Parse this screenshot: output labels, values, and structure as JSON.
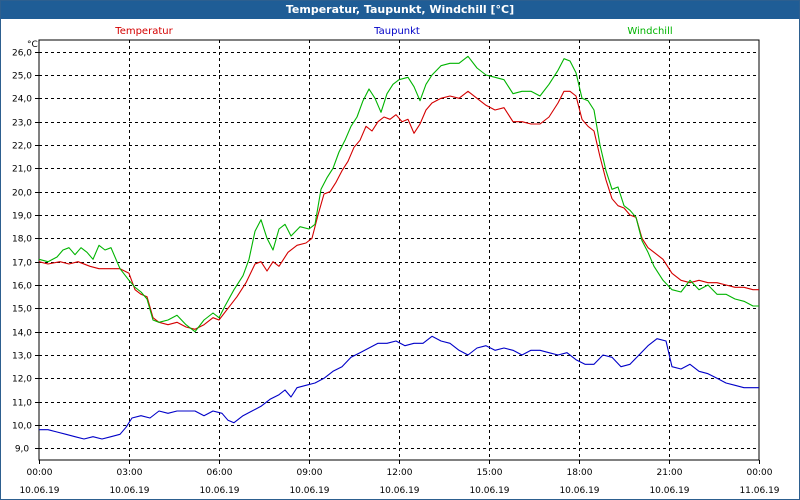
{
  "window": {
    "title": "Temperatur, Taupunkt, Windchill [°C]"
  },
  "chart_data": {
    "type": "line",
    "title": "Temperatur, Taupunkt, Windchill [°C]",
    "yunit": "°C",
    "ylim": [
      8.5,
      26.5
    ],
    "yticks": [
      "26,0",
      "25,0",
      "24,0",
      "23,0",
      "22,0",
      "21,0",
      "20,0",
      "19,0",
      "18,0",
      "17,0",
      "16,0",
      "15,0",
      "14,0",
      "13,0",
      "12,0",
      "11,0",
      "10,0",
      "9,0"
    ],
    "ytick_values": [
      26,
      25,
      24,
      23,
      22,
      21,
      20,
      19,
      18,
      17,
      16,
      15,
      14,
      13,
      12,
      11,
      10,
      9
    ],
    "xlim": [
      0,
      24
    ],
    "xticks": [
      {
        "time": "00:00",
        "date": "10.06.19"
      },
      {
        "time": "03:00",
        "date": "10.06.19"
      },
      {
        "time": "06:00",
        "date": "10.06.19"
      },
      {
        "time": "09:00",
        "date": "10.06.19"
      },
      {
        "time": "12:00",
        "date": "10.06.19"
      },
      {
        "time": "15:00",
        "date": "10.06.19"
      },
      {
        "time": "18:00",
        "date": "10.06.19"
      },
      {
        "time": "21:00",
        "date": "10.06.19"
      },
      {
        "time": "00:00",
        "date": "11.06.19"
      }
    ],
    "xtick_values": [
      0,
      3,
      6,
      9,
      12,
      15,
      18,
      21,
      24
    ],
    "grid": true,
    "series": [
      {
        "name": "Temperatur",
        "color": "#d40000",
        "points": [
          [
            0,
            17.0
          ],
          [
            0.3,
            16.9
          ],
          [
            0.7,
            17.0
          ],
          [
            1.0,
            16.9
          ],
          [
            1.3,
            17.0
          ],
          [
            1.7,
            16.8
          ],
          [
            2.0,
            16.7
          ],
          [
            2.3,
            16.7
          ],
          [
            2.7,
            16.7
          ],
          [
            3.0,
            16.5
          ],
          [
            3.2,
            15.8
          ],
          [
            3.4,
            15.6
          ],
          [
            3.6,
            15.5
          ],
          [
            3.8,
            14.6
          ],
          [
            4.0,
            14.4
          ],
          [
            4.3,
            14.3
          ],
          [
            4.6,
            14.4
          ],
          [
            4.9,
            14.2
          ],
          [
            5.2,
            14.1
          ],
          [
            5.5,
            14.3
          ],
          [
            5.8,
            14.6
          ],
          [
            6.0,
            14.5
          ],
          [
            6.3,
            15.0
          ],
          [
            6.6,
            15.5
          ],
          [
            6.9,
            16.1
          ],
          [
            7.2,
            16.9
          ],
          [
            7.4,
            17.0
          ],
          [
            7.6,
            16.6
          ],
          [
            7.8,
            17.0
          ],
          [
            8.0,
            16.8
          ],
          [
            8.3,
            17.4
          ],
          [
            8.6,
            17.7
          ],
          [
            8.9,
            17.8
          ],
          [
            9.1,
            18.0
          ],
          [
            9.3,
            19.0
          ],
          [
            9.5,
            19.9
          ],
          [
            9.7,
            20.0
          ],
          [
            9.9,
            20.4
          ],
          [
            10.1,
            20.9
          ],
          [
            10.3,
            21.3
          ],
          [
            10.5,
            21.9
          ],
          [
            10.7,
            22.2
          ],
          [
            10.9,
            22.8
          ],
          [
            11.1,
            22.6
          ],
          [
            11.3,
            23.0
          ],
          [
            11.5,
            23.2
          ],
          [
            11.7,
            23.1
          ],
          [
            11.9,
            23.3
          ],
          [
            12.1,
            23.0
          ],
          [
            12.3,
            23.1
          ],
          [
            12.5,
            22.5
          ],
          [
            12.7,
            22.9
          ],
          [
            12.9,
            23.5
          ],
          [
            13.1,
            23.8
          ],
          [
            13.4,
            24.0
          ],
          [
            13.7,
            24.1
          ],
          [
            14.0,
            24.0
          ],
          [
            14.3,
            24.3
          ],
          [
            14.6,
            24.0
          ],
          [
            14.9,
            23.7
          ],
          [
            15.2,
            23.5
          ],
          [
            15.5,
            23.6
          ],
          [
            15.8,
            23.0
          ],
          [
            16.1,
            23.0
          ],
          [
            16.4,
            22.9
          ],
          [
            16.7,
            22.9
          ],
          [
            17.0,
            23.2
          ],
          [
            17.3,
            23.8
          ],
          [
            17.5,
            24.3
          ],
          [
            17.7,
            24.3
          ],
          [
            17.9,
            24.1
          ],
          [
            18.1,
            23.1
          ],
          [
            18.3,
            22.8
          ],
          [
            18.5,
            22.6
          ],
          [
            18.7,
            21.5
          ],
          [
            18.9,
            20.5
          ],
          [
            19.1,
            19.7
          ],
          [
            19.3,
            19.4
          ],
          [
            19.5,
            19.3
          ],
          [
            19.7,
            19.0
          ],
          [
            19.9,
            18.9
          ],
          [
            20.1,
            18.0
          ],
          [
            20.3,
            17.6
          ],
          [
            20.5,
            17.4
          ],
          [
            20.8,
            17.1
          ],
          [
            21.1,
            16.5
          ],
          [
            21.4,
            16.2
          ],
          [
            21.7,
            16.1
          ],
          [
            22.0,
            16.2
          ],
          [
            22.3,
            16.1
          ],
          [
            22.6,
            16.1
          ],
          [
            22.9,
            16.0
          ],
          [
            23.2,
            15.9
          ],
          [
            23.5,
            15.9
          ],
          [
            23.8,
            15.8
          ],
          [
            24.0,
            15.8
          ]
        ]
      },
      {
        "name": "Taupunkt",
        "color": "#0000c8",
        "points": [
          [
            0,
            9.8
          ],
          [
            0.3,
            9.8
          ],
          [
            0.6,
            9.7
          ],
          [
            0.9,
            9.6
          ],
          [
            1.2,
            9.5
          ],
          [
            1.5,
            9.4
          ],
          [
            1.8,
            9.5
          ],
          [
            2.1,
            9.4
          ],
          [
            2.4,
            9.5
          ],
          [
            2.7,
            9.6
          ],
          [
            2.9,
            9.9
          ],
          [
            3.1,
            10.3
          ],
          [
            3.4,
            10.4
          ],
          [
            3.7,
            10.3
          ],
          [
            4.0,
            10.6
          ],
          [
            4.3,
            10.5
          ],
          [
            4.6,
            10.6
          ],
          [
            4.9,
            10.6
          ],
          [
            5.2,
            10.6
          ],
          [
            5.5,
            10.4
          ],
          [
            5.8,
            10.6
          ],
          [
            6.1,
            10.5
          ],
          [
            6.3,
            10.2
          ],
          [
            6.5,
            10.1
          ],
          [
            6.8,
            10.4
          ],
          [
            7.1,
            10.6
          ],
          [
            7.4,
            10.8
          ],
          [
            7.7,
            11.1
          ],
          [
            8.0,
            11.3
          ],
          [
            8.2,
            11.5
          ],
          [
            8.4,
            11.2
          ],
          [
            8.6,
            11.6
          ],
          [
            8.9,
            11.7
          ],
          [
            9.2,
            11.8
          ],
          [
            9.5,
            12.0
          ],
          [
            9.8,
            12.3
          ],
          [
            10.1,
            12.5
          ],
          [
            10.4,
            12.9
          ],
          [
            10.7,
            13.1
          ],
          [
            11.0,
            13.3
          ],
          [
            11.3,
            13.5
          ],
          [
            11.6,
            13.5
          ],
          [
            11.9,
            13.6
          ],
          [
            12.2,
            13.4
          ],
          [
            12.5,
            13.5
          ],
          [
            12.8,
            13.5
          ],
          [
            13.1,
            13.8
          ],
          [
            13.4,
            13.6
          ],
          [
            13.7,
            13.5
          ],
          [
            14.0,
            13.2
          ],
          [
            14.3,
            13.0
          ],
          [
            14.6,
            13.3
          ],
          [
            14.9,
            13.4
          ],
          [
            15.2,
            13.2
          ],
          [
            15.5,
            13.3
          ],
          [
            15.8,
            13.2
          ],
          [
            16.1,
            13.0
          ],
          [
            16.4,
            13.2
          ],
          [
            16.7,
            13.2
          ],
          [
            17.0,
            13.1
          ],
          [
            17.3,
            13.0
          ],
          [
            17.6,
            13.1
          ],
          [
            17.9,
            12.8
          ],
          [
            18.2,
            12.6
          ],
          [
            18.5,
            12.6
          ],
          [
            18.8,
            13.0
          ],
          [
            19.1,
            12.9
          ],
          [
            19.4,
            12.5
          ],
          [
            19.7,
            12.6
          ],
          [
            20.0,
            13.0
          ],
          [
            20.3,
            13.4
          ],
          [
            20.6,
            13.7
          ],
          [
            20.9,
            13.6
          ],
          [
            21.1,
            12.5
          ],
          [
            21.4,
            12.4
          ],
          [
            21.7,
            12.6
          ],
          [
            22.0,
            12.3
          ],
          [
            22.3,
            12.2
          ],
          [
            22.6,
            12.0
          ],
          [
            22.9,
            11.8
          ],
          [
            23.2,
            11.7
          ],
          [
            23.5,
            11.6
          ],
          [
            23.8,
            11.6
          ],
          [
            24.0,
            11.6
          ]
        ]
      },
      {
        "name": "Windchill",
        "color": "#00b400",
        "points": [
          [
            0,
            17.1
          ],
          [
            0.3,
            17.0
          ],
          [
            0.6,
            17.2
          ],
          [
            0.8,
            17.5
          ],
          [
            1.0,
            17.6
          ],
          [
            1.2,
            17.3
          ],
          [
            1.4,
            17.6
          ],
          [
            1.6,
            17.4
          ],
          [
            1.8,
            17.1
          ],
          [
            2.0,
            17.7
          ],
          [
            2.2,
            17.5
          ],
          [
            2.4,
            17.6
          ],
          [
            2.7,
            16.7
          ],
          [
            3.0,
            16.2
          ],
          [
            3.2,
            15.9
          ],
          [
            3.4,
            15.7
          ],
          [
            3.6,
            15.4
          ],
          [
            3.8,
            14.5
          ],
          [
            4.0,
            14.4
          ],
          [
            4.3,
            14.5
          ],
          [
            4.6,
            14.7
          ],
          [
            4.9,
            14.3
          ],
          [
            5.2,
            14.0
          ],
          [
            5.5,
            14.5
          ],
          [
            5.8,
            14.8
          ],
          [
            6.0,
            14.6
          ],
          [
            6.2,
            15.1
          ],
          [
            6.5,
            15.8
          ],
          [
            6.8,
            16.4
          ],
          [
            7.0,
            17.1
          ],
          [
            7.2,
            18.3
          ],
          [
            7.4,
            18.8
          ],
          [
            7.6,
            18.0
          ],
          [
            7.8,
            17.5
          ],
          [
            8.0,
            18.4
          ],
          [
            8.2,
            18.6
          ],
          [
            8.4,
            18.1
          ],
          [
            8.7,
            18.5
          ],
          [
            9.0,
            18.4
          ],
          [
            9.2,
            18.6
          ],
          [
            9.4,
            20.1
          ],
          [
            9.6,
            20.6
          ],
          [
            9.8,
            21.0
          ],
          [
            10.0,
            21.7
          ],
          [
            10.2,
            22.2
          ],
          [
            10.4,
            22.8
          ],
          [
            10.6,
            23.2
          ],
          [
            10.8,
            23.9
          ],
          [
            11.0,
            24.4
          ],
          [
            11.2,
            24.0
          ],
          [
            11.4,
            23.4
          ],
          [
            11.6,
            24.2
          ],
          [
            11.8,
            24.6
          ],
          [
            12.0,
            24.8
          ],
          [
            12.3,
            24.9
          ],
          [
            12.5,
            24.5
          ],
          [
            12.7,
            23.9
          ],
          [
            12.9,
            24.6
          ],
          [
            13.1,
            25.0
          ],
          [
            13.4,
            25.4
          ],
          [
            13.7,
            25.5
          ],
          [
            14.0,
            25.5
          ],
          [
            14.3,
            25.8
          ],
          [
            14.6,
            25.3
          ],
          [
            14.9,
            25.0
          ],
          [
            15.2,
            24.9
          ],
          [
            15.5,
            24.8
          ],
          [
            15.8,
            24.2
          ],
          [
            16.1,
            24.3
          ],
          [
            16.4,
            24.3
          ],
          [
            16.7,
            24.1
          ],
          [
            17.0,
            24.6
          ],
          [
            17.3,
            25.2
          ],
          [
            17.5,
            25.7
          ],
          [
            17.7,
            25.6
          ],
          [
            17.9,
            25.1
          ],
          [
            18.1,
            24.0
          ],
          [
            18.3,
            23.9
          ],
          [
            18.5,
            23.5
          ],
          [
            18.7,
            22.0
          ],
          [
            18.9,
            20.9
          ],
          [
            19.1,
            20.1
          ],
          [
            19.3,
            20.2
          ],
          [
            19.5,
            19.4
          ],
          [
            19.7,
            19.2
          ],
          [
            19.9,
            18.9
          ],
          [
            20.1,
            17.9
          ],
          [
            20.3,
            17.4
          ],
          [
            20.5,
            16.8
          ],
          [
            20.8,
            16.2
          ],
          [
            21.1,
            15.8
          ],
          [
            21.4,
            15.7
          ],
          [
            21.7,
            16.2
          ],
          [
            22.0,
            15.8
          ],
          [
            22.3,
            16.0
          ],
          [
            22.6,
            15.6
          ],
          [
            22.9,
            15.6
          ],
          [
            23.2,
            15.4
          ],
          [
            23.5,
            15.3
          ],
          [
            23.8,
            15.1
          ],
          [
            24.0,
            15.1
          ]
        ]
      }
    ]
  }
}
